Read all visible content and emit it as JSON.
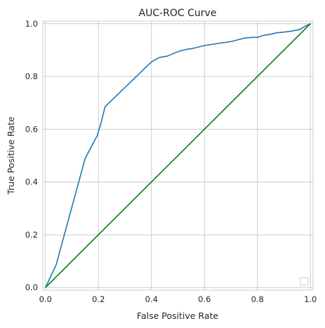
{
  "chart_data": {
    "type": "line",
    "title": "AUC-ROC Curve",
    "xlabel": "False Positive Rate",
    "ylabel": "True Positive Rate",
    "xlim": [
      -0.01,
      1.01
    ],
    "ylim": [
      -0.01,
      1.01
    ],
    "xticks": [
      "0.0",
      "0.2",
      "0.4",
      "0.6",
      "0.8",
      "1.0"
    ],
    "yticks": [
      "0.0",
      "0.2",
      "0.4",
      "0.6",
      "0.8",
      "1.0"
    ],
    "grid": true,
    "legend_placement": "lower-right",
    "series": [
      {
        "color": "#1f77b4",
        "x": [
          0.0,
          0.04,
          0.15,
          0.195,
          0.21,
          0.225,
          0.23,
          0.24,
          0.4,
          0.43,
          0.46,
          0.49,
          0.51,
          0.53,
          0.56,
          0.6,
          0.65,
          0.7,
          0.75,
          0.78,
          0.8,
          0.82,
          0.85,
          0.87,
          0.9,
          0.93,
          0.96,
          0.98,
          1.0
        ],
        "y": [
          0.0,
          0.085,
          0.49,
          0.575,
          0.625,
          0.685,
          0.69,
          0.7,
          0.855,
          0.872,
          0.877,
          0.89,
          0.897,
          0.902,
          0.907,
          0.917,
          0.925,
          0.932,
          0.945,
          0.948,
          0.948,
          0.955,
          0.96,
          0.965,
          0.968,
          0.972,
          0.978,
          0.99,
          1.0
        ]
      },
      {
        "color": "#008000",
        "x": [
          0.0,
          1.0
        ],
        "y": [
          0.0,
          1.0
        ]
      }
    ]
  }
}
